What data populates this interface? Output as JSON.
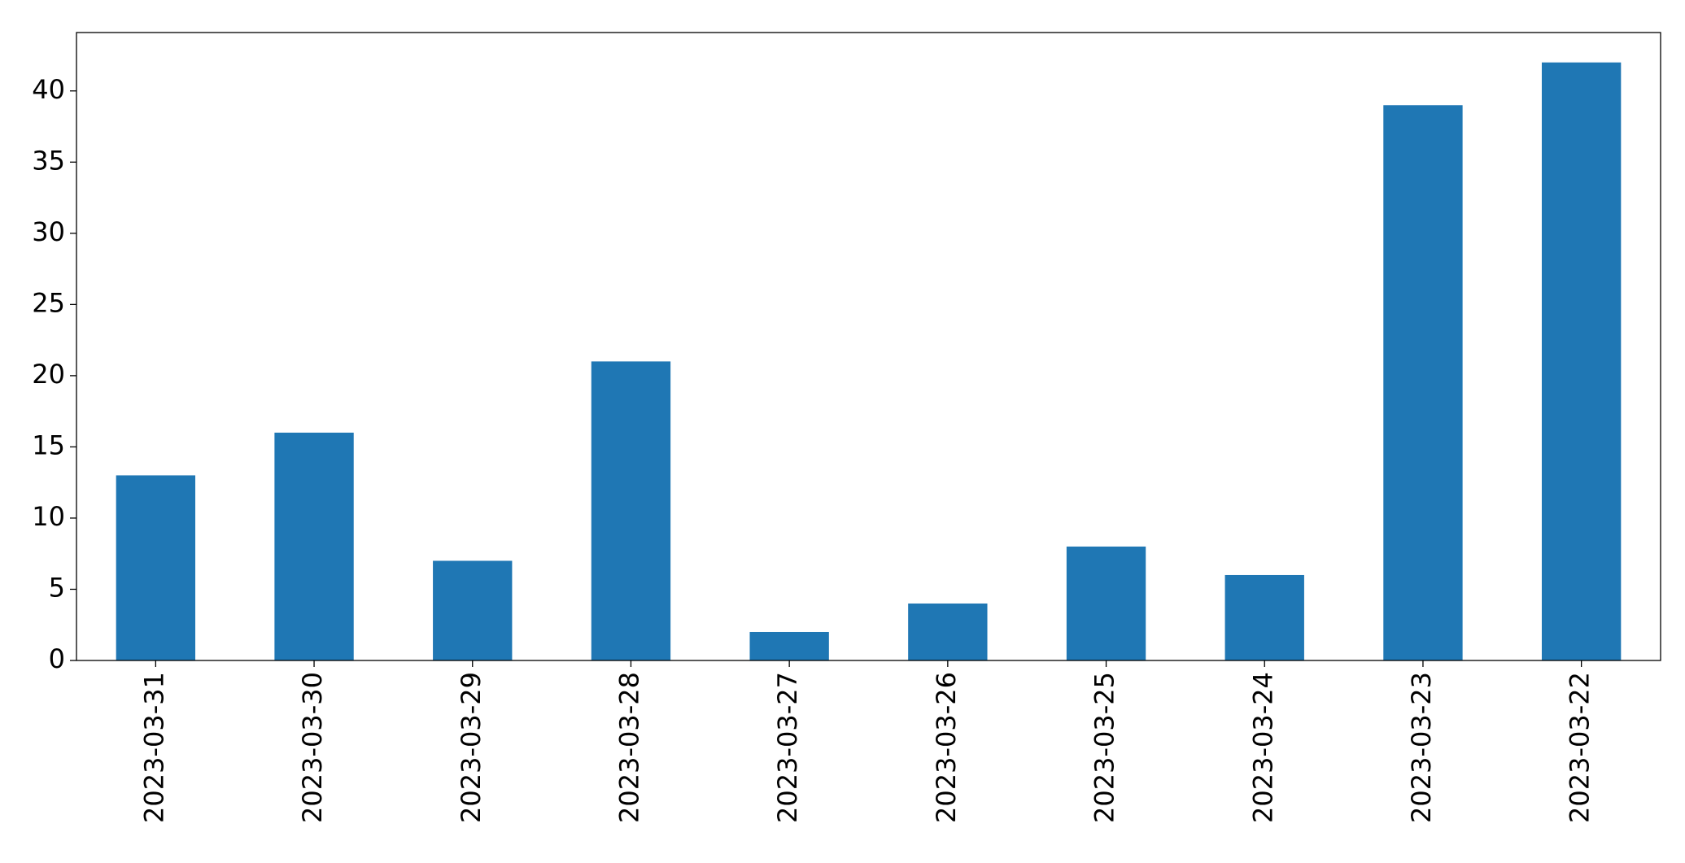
{
  "chart_data": {
    "type": "bar",
    "categories": [
      "2023-03-31",
      "2023-03-30",
      "2023-03-29",
      "2023-03-28",
      "2023-03-27",
      "2023-03-26",
      "2023-03-25",
      "2023-03-24",
      "2023-03-23",
      "2023-03-22"
    ],
    "values": [
      13,
      16,
      7,
      21,
      2,
      4,
      8,
      6,
      39,
      42
    ],
    "color": "#1f77b4",
    "ylim": [
      0,
      44.1
    ],
    "yticks": [
      0,
      5,
      10,
      15,
      20,
      25,
      30,
      35,
      40
    ],
    "grid": false
  }
}
